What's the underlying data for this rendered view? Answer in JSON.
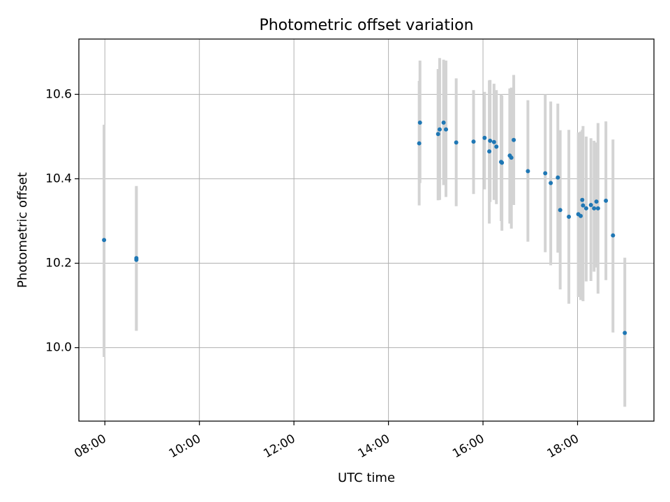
{
  "chart_data": {
    "type": "scatter",
    "title": "Photometric offset variation",
    "xlabel": "UTC time",
    "ylabel": "Photometric offset",
    "x_ticks": [
      "08:00",
      "10:00",
      "12:00",
      "14:00",
      "16:00",
      "18:00"
    ],
    "y_ticks": [
      "10.0",
      "10.2",
      "10.4",
      "10.6"
    ],
    "xlim": [
      "07:27",
      "19:37"
    ],
    "ylim": [
      9.826,
      10.731
    ],
    "grid": true,
    "colors": {
      "point": "#1f77b4",
      "errorbar": "#d3d3d3",
      "grid": "#b0b0b0"
    },
    "points": [
      {
        "x": "07:59",
        "y": 10.255,
        "ymin": 9.978,
        "ymax": 10.528
      },
      {
        "x": "08:40",
        "y": 10.212,
        "ymin": 10.04,
        "ymax": 10.383
      },
      {
        "x": "08:40",
        "y": 10.208,
        "ymin": 10.04,
        "ymax": 10.38
      },
      {
        "x": "14:39",
        "y": 10.484,
        "ymin": 10.337,
        "ymax": 10.632
      },
      {
        "x": "14:40",
        "y": 10.533,
        "ymin": 10.39,
        "ymax": 10.68
      },
      {
        "x": "15:03",
        "y": 10.506,
        "ymin": 10.349,
        "ymax": 10.66
      },
      {
        "x": "15:05",
        "y": 10.517,
        "ymin": 10.35,
        "ymax": 10.686
      },
      {
        "x": "15:10",
        "y": 10.533,
        "ymin": 10.385,
        "ymax": 10.682
      },
      {
        "x": "15:13",
        "y": 10.517,
        "ymin": 10.357,
        "ymax": 10.68
      },
      {
        "x": "15:26",
        "y": 10.486,
        "ymin": 10.335,
        "ymax": 10.638
      },
      {
        "x": "15:48",
        "y": 10.488,
        "ymin": 10.364,
        "ymax": 10.61
      },
      {
        "x": "16:02",
        "y": 10.497,
        "ymin": 10.375,
        "ymax": 10.606
      },
      {
        "x": "16:08",
        "y": 10.465,
        "ymin": 10.294,
        "ymax": 10.633
      },
      {
        "x": "16:09",
        "y": 10.49,
        "ymin": 10.345,
        "ymax": 10.634
      },
      {
        "x": "16:14",
        "y": 10.487,
        "ymin": 10.35,
        "ymax": 10.625
      },
      {
        "x": "16:17",
        "y": 10.476,
        "ymin": 10.34,
        "ymax": 10.61
      },
      {
        "x": "16:23",
        "y": 10.44,
        "ymin": 10.3,
        "ymax": 10.6
      },
      {
        "x": "16:24",
        "y": 10.438,
        "ymin": 10.277,
        "ymax": 10.597
      },
      {
        "x": "16:34",
        "y": 10.455,
        "ymin": 10.294,
        "ymax": 10.614
      },
      {
        "x": "16:36",
        "y": 10.45,
        "ymin": 10.282,
        "ymax": 10.616
      },
      {
        "x": "16:39",
        "y": 10.492,
        "ymin": 10.338,
        "ymax": 10.646
      },
      {
        "x": "16:57",
        "y": 10.418,
        "ymin": 10.251,
        "ymax": 10.586
      },
      {
        "x": "17:19",
        "y": 10.413,
        "ymin": 10.226,
        "ymax": 10.6
      },
      {
        "x": "17:26",
        "y": 10.39,
        "ymin": 10.195,
        "ymax": 10.583
      },
      {
        "x": "17:35",
        "y": 10.403,
        "ymin": 10.225,
        "ymax": 10.578
      },
      {
        "x": "17:38",
        "y": 10.326,
        "ymin": 10.138,
        "ymax": 10.515
      },
      {
        "x": "17:49",
        "y": 10.31,
        "ymin": 10.104,
        "ymax": 10.516
      },
      {
        "x": "18:01",
        "y": 10.316,
        "ymin": 10.12,
        "ymax": 10.51
      },
      {
        "x": "18:04",
        "y": 10.312,
        "ymin": 10.113,
        "ymax": 10.512
      },
      {
        "x": "18:06",
        "y": 10.35,
        "ymin": 10.184,
        "ymax": 10.516
      },
      {
        "x": "18:07",
        "y": 10.337,
        "ymin": 10.11,
        "ymax": 10.525
      },
      {
        "x": "18:11",
        "y": 10.33,
        "ymin": 10.157,
        "ymax": 10.5
      },
      {
        "x": "18:17",
        "y": 10.338,
        "ymin": 10.158,
        "ymax": 10.496
      },
      {
        "x": "18:21",
        "y": 10.33,
        "ymin": 10.18,
        "ymax": 10.49
      },
      {
        "x": "18:24",
        "y": 10.346,
        "ymin": 10.19,
        "ymax": 10.486
      },
      {
        "x": "18:26",
        "y": 10.33,
        "ymin": 10.128,
        "ymax": 10.532
      },
      {
        "x": "18:36",
        "y": 10.348,
        "ymin": 10.16,
        "ymax": 10.536
      },
      {
        "x": "18:45",
        "y": 10.266,
        "ymin": 10.036,
        "ymax": 10.493
      },
      {
        "x": "19:00",
        "y": 10.035,
        "ymin": 9.86,
        "ymax": 10.213
      }
    ]
  }
}
